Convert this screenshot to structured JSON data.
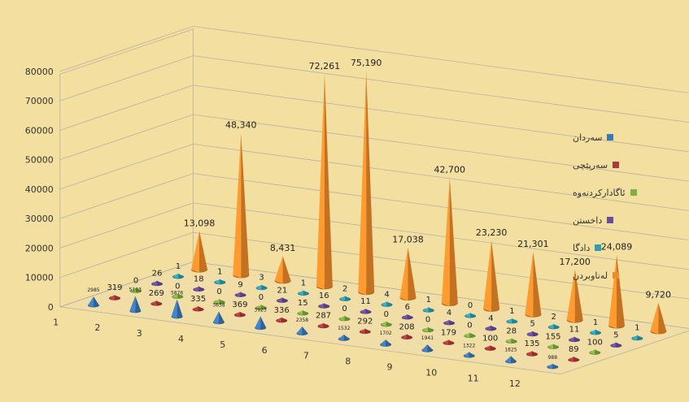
{
  "colors": {
    "background": "#f3dfa0",
    "wall": "#f6e3a8",
    "grid": "#b9b1a1",
    "axis_text": "#333333",
    "series": [
      "#3a78b8",
      "#b03a3a",
      "#7fb040",
      "#6a4c9c",
      "#2d9fb5",
      "#f08a2a"
    ]
  },
  "chart_data": {
    "type": "bar",
    "subtype": "3d-cone",
    "categories": [
      "1",
      "2",
      "3",
      "4",
      "5",
      "6",
      "7",
      "8",
      "9",
      "10",
      "11",
      "12"
    ],
    "y_ticks": [
      "0",
      "10000",
      "20000",
      "30000",
      "40000",
      "50000",
      "60000",
      "70000",
      "80000"
    ],
    "ylim": [
      0,
      80000
    ],
    "grid": true,
    "legend_position": "right",
    "series": [
      {
        "name": "سەردان",
        "values": [
          2985,
          5103,
          5876,
          3638,
          3923,
          2358,
          1532,
          1702,
          1941,
          1322,
          1825,
          988
        ],
        "labels": [
          "2985",
          "5103",
          "5876",
          "3638",
          "3923",
          "2358",
          "1532",
          "1702",
          "1941",
          "1322",
          "1825",
          "988"
        ]
      },
      {
        "name": "سەرپێچی",
        "values": [
          319,
          269,
          335,
          369,
          336,
          287,
          292,
          208,
          179,
          100,
          135,
          89
        ],
        "labels": [
          "319",
          "269",
          "335",
          "369",
          "336",
          "287",
          "292",
          "208",
          "179",
          "100",
          "135",
          "89"
        ]
      },
      {
        "name": "ئاگادارکردنەوە",
        "values": [
          0,
          0,
          0,
          0,
          15,
          0,
          0,
          0,
          0,
          28,
          155,
          100
        ],
        "labels": [
          "0",
          "0",
          "0",
          "0",
          "15",
          "0",
          "0",
          "0",
          "0",
          "28",
          "155",
          "100"
        ]
      },
      {
        "name": "داخستن",
        "values": [
          26,
          18,
          9,
          21,
          16,
          11,
          6,
          4,
          4,
          5,
          11,
          5
        ],
        "labels": [
          "26",
          "18",
          "9",
          "21",
          "16",
          "11",
          "6",
          "4",
          "4",
          "5",
          "11",
          "5"
        ]
      },
      {
        "name": "دادگا",
        "values": [
          1,
          1,
          3,
          1,
          2,
          4,
          1,
          0,
          1,
          2,
          1,
          1
        ],
        "labels": [
          "1",
          "1",
          "3",
          "1",
          "2",
          "4",
          "1",
          "0",
          "1",
          "2",
          "1",
          "1"
        ]
      },
      {
        "name": "لەناوبردن",
        "values": [
          13098,
          48340,
          8431,
          72261,
          75190,
          17038,
          42700,
          23230,
          21301,
          17200,
          24089,
          9720
        ],
        "labels": [
          "13,098",
          "48,340",
          "8,431",
          "72,261",
          "75,190",
          "17,038",
          "42,700",
          "23,230",
          "21,301",
          "17,200",
          "24,089",
          "9,720"
        ]
      }
    ]
  }
}
